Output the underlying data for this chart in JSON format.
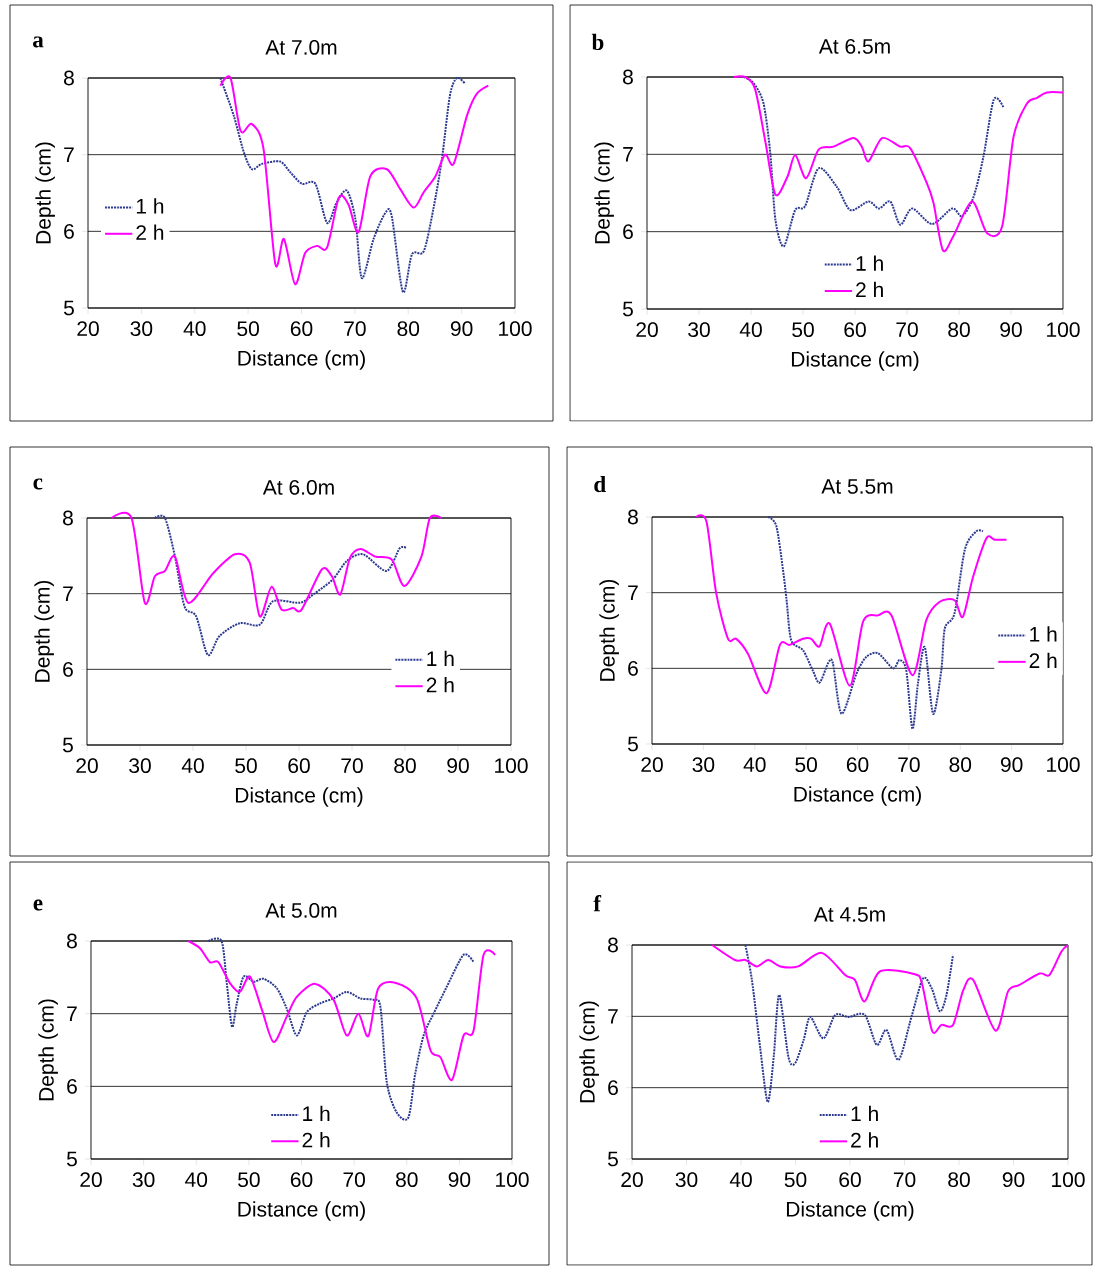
{
  "chart_data": [
    {
      "type": "line",
      "title": "At 7.0m",
      "annotations": [
        "a"
      ],
      "xlabel": "Distance (cm)",
      "ylabel": "Depth (cm)",
      "xlim": [
        20,
        100
      ],
      "ylim": [
        5,
        8
      ],
      "xticks": [
        20,
        30,
        40,
        50,
        60,
        70,
        80,
        90,
        100
      ],
      "yticks": [
        5,
        6,
        7,
        8
      ],
      "grid": "y",
      "legend": "left",
      "marker": "none",
      "series": [
        {
          "name": "1 h",
          "color": "#2b3990",
          "line_style": "dotted",
          "x": [
            44.8,
            47.3,
            49.2,
            50.7,
            52.6,
            56.0,
            57.9,
            60.1,
            62.6,
            64.8,
            66.6,
            68.5,
            70.1,
            71.3,
            73.5,
            75.7,
            76.9,
            79.0,
            80.7,
            82.9,
            84.7,
            86.3,
            87.8,
            89.1,
            90.6
          ],
          "values": [
            8.0,
            7.51,
            7.03,
            6.81,
            6.88,
            6.91,
            6.77,
            6.62,
            6.62,
            6.11,
            6.38,
            6.53,
            6.16,
            5.39,
            5.9,
            6.24,
            6.2,
            5.21,
            5.7,
            5.74,
            6.29,
            6.94,
            7.77,
            8.0,
            7.93
          ]
        },
        {
          "name": "2 h",
          "color": "#ff00ff",
          "line_style": "solid",
          "x": [
            44.8,
            46.7,
            48.6,
            50.7,
            52.9,
            55.1,
            56.7,
            58.8,
            60.7,
            62.9,
            64.8,
            67.0,
            68.8,
            70.7,
            72.9,
            76.0,
            78.5,
            81.0,
            82.9,
            85.1,
            86.9,
            88.5,
            91.0,
            92.8,
            95.0
          ],
          "values": [
            7.9,
            8.0,
            7.31,
            7.4,
            7.07,
            5.57,
            5.9,
            5.31,
            5.72,
            5.81,
            5.79,
            6.44,
            6.35,
            5.99,
            6.72,
            6.81,
            6.55,
            6.31,
            6.51,
            6.72,
            7.0,
            6.88,
            7.51,
            7.79,
            7.9
          ]
        }
      ]
    },
    {
      "type": "line",
      "title": "At 6.5m",
      "annotations": [
        "b"
      ],
      "xlabel": "Distance (cm)",
      "ylabel": "Depth (cm)",
      "xlim": [
        20,
        100
      ],
      "ylim": [
        5,
        8
      ],
      "xticks": [
        20,
        30,
        40,
        50,
        60,
        70,
        80,
        90,
        100
      ],
      "yticks": [
        5,
        6,
        7,
        8
      ],
      "grid": "y",
      "legend": "bottom",
      "marker": "none",
      "series": [
        {
          "name": "1 h",
          "color": "#2b3990",
          "line_style": "dotted",
          "x": [
            38.6,
            40.5,
            42.4,
            43.7,
            44.7,
            46.3,
            48.5,
            50.4,
            53.0,
            56.5,
            59.1,
            62.6,
            64.6,
            66.8,
            68.7,
            71.0,
            74.8,
            78.7,
            80.6,
            82.8,
            84.7,
            86.7,
            88.6
          ],
          "values": [
            8.0,
            7.92,
            7.66,
            7.02,
            6.15,
            5.81,
            6.28,
            6.33,
            6.82,
            6.58,
            6.28,
            6.39,
            6.3,
            6.39,
            6.09,
            6.3,
            6.1,
            6.3,
            6.2,
            6.45,
            6.97,
            7.71,
            7.6
          ]
        },
        {
          "name": "2 h",
          "color": "#ff00ff",
          "line_style": "solid",
          "x": [
            36.7,
            38.9,
            40.8,
            42.8,
            44.7,
            47.0,
            48.5,
            50.6,
            53.0,
            55.9,
            59.7,
            61.3,
            62.6,
            65.2,
            68.7,
            70.6,
            73.8,
            75.1,
            76.9,
            78.9,
            82.5,
            85.4,
            88.3,
            90.5,
            93.1,
            95.0,
            96.9,
            100
          ],
          "values": [
            8.0,
            8.0,
            7.84,
            7.15,
            6.48,
            6.71,
            6.99,
            6.69,
            7.06,
            7.1,
            7.21,
            7.1,
            6.91,
            7.21,
            7.1,
            7.08,
            6.63,
            6.37,
            5.76,
            5.94,
            6.39,
            5.98,
            6.07,
            7.23,
            7.66,
            7.73,
            7.8,
            7.8
          ]
        }
      ]
    },
    {
      "type": "line",
      "title": "At 6.0m",
      "annotations": [
        "c"
      ],
      "xlabel": "Distance (cm)",
      "ylabel": "Depth (cm)",
      "xlim": [
        20,
        100
      ],
      "ylim": [
        5,
        8
      ],
      "xticks": [
        20,
        30,
        40,
        50,
        60,
        70,
        80,
        90,
        100
      ],
      "yticks": [
        5,
        6,
        7,
        8
      ],
      "grid": "y",
      "legend": "bottom right",
      "marker": "none",
      "series": [
        {
          "name": "1 h",
          "color": "#2b3990",
          "line_style": "dotted",
          "x": [
            32.8,
            34.7,
            36.6,
            38.4,
            40.6,
            42.8,
            45.0,
            48.8,
            52.6,
            55.1,
            60.2,
            62.7,
            66.4,
            69.0,
            72.1,
            76.5,
            79.0,
            80.3
          ],
          "values": [
            8.0,
            8.0,
            7.49,
            6.83,
            6.7,
            6.19,
            6.44,
            6.61,
            6.59,
            6.9,
            6.88,
            6.99,
            7.19,
            7.43,
            7.52,
            7.3,
            7.6,
            7.6
          ]
        },
        {
          "name": "2 h",
          "color": "#ff00ff",
          "line_style": "solid",
          "x": [
            24.6,
            28.4,
            30.9,
            32.8,
            34.7,
            36.6,
            39.1,
            43.8,
            47.9,
            50.7,
            52.6,
            54.8,
            56.7,
            58.9,
            60.5,
            64.3,
            66.2,
            67.8,
            69.6,
            71.6,
            74.4,
            77.5,
            79.9,
            83.1,
            84.7,
            86.9
          ],
          "values": [
            8.0,
            8.0,
            6.88,
            7.23,
            7.3,
            7.49,
            6.88,
            7.27,
            7.52,
            7.41,
            6.7,
            7.09,
            6.79,
            6.81,
            6.79,
            7.32,
            7.23,
            6.99,
            7.47,
            7.59,
            7.49,
            7.45,
            7.1,
            7.49,
            8.0,
            8.0
          ]
        }
      ]
    },
    {
      "type": "line",
      "title": "At 5.5m",
      "annotations": [
        "d"
      ],
      "xlabel": "Distance (cm)",
      "ylabel": "Depth (cm)",
      "xlim": [
        20,
        100
      ],
      "ylim": [
        5,
        8
      ],
      "xticks": [
        20,
        30,
        40,
        50,
        60,
        70,
        80,
        90,
        100
      ],
      "yticks": [
        5,
        6,
        7,
        8
      ],
      "grid": "y",
      "legend": "right",
      "marker": "none",
      "series": [
        {
          "name": "1 h",
          "color": "#2b3990",
          "line_style": "dotted",
          "x": [
            42.6,
            44.2,
            45.5,
            46.2,
            47.1,
            49.4,
            51.3,
            52.6,
            54.3,
            55.2,
            56.9,
            59.8,
            61.7,
            64.0,
            66.9,
            68.2,
            69.5,
            70.7,
            71.8,
            73.1,
            74.7,
            76.3,
            77.0,
            78.9,
            80.9,
            83.1,
            84.4
          ],
          "values": [
            8.0,
            7.88,
            7.3,
            6.9,
            6.37,
            6.24,
            5.97,
            5.81,
            6.07,
            6.07,
            5.4,
            5.93,
            6.15,
            6.2,
            6.0,
            6.11,
            5.97,
            5.2,
            5.82,
            6.28,
            5.4,
            5.97,
            6.53,
            6.73,
            7.57,
            7.81,
            7.81
          ]
        },
        {
          "name": "2 h",
          "color": "#ff00ff",
          "line_style": "solid",
          "x": [
            28.6,
            30.6,
            32.5,
            34.8,
            36.4,
            38.7,
            42.3,
            44.9,
            46.8,
            49.4,
            51.0,
            52.6,
            54.6,
            58.5,
            61.1,
            64.0,
            66.6,
            70.7,
            73.4,
            76.0,
            78.9,
            80.5,
            82.5,
            85.1,
            86.7,
            89.0
          ],
          "values": [
            8.0,
            7.94,
            6.99,
            6.39,
            6.39,
            6.19,
            5.67,
            6.31,
            6.31,
            6.39,
            6.39,
            6.29,
            6.59,
            5.77,
            6.62,
            6.7,
            6.7,
            5.91,
            6.64,
            6.88,
            6.9,
            6.68,
            7.21,
            7.72,
            7.7,
            7.7
          ]
        }
      ]
    },
    {
      "type": "line",
      "title": "At 5.0m",
      "annotations": [
        "e"
      ],
      "xlabel": "Distance (cm)",
      "ylabel": "Depth (cm)",
      "xlim": [
        20,
        100
      ],
      "ylim": [
        5,
        8
      ],
      "xticks": [
        20,
        30,
        40,
        50,
        60,
        70,
        80,
        90,
        100
      ],
      "yticks": [
        5,
        6,
        7,
        8
      ],
      "grid": "y",
      "legend": "bottom",
      "marker": "none",
      "series": [
        {
          "name": "1 h",
          "color": "#2b3990",
          "line_style": "dotted",
          "x": [
            42.3,
            44.8,
            45.8,
            46.8,
            47.7,
            49.0,
            50.9,
            52.8,
            55.3,
            57.2,
            59.1,
            61.0,
            63.5,
            66.1,
            68.6,
            71.2,
            73.7,
            75.0,
            76.2,
            78.1,
            80.3,
            81.6,
            83.2,
            85.1,
            87.6,
            90.8,
            92.7
          ],
          "values": [
            8.0,
            8.0,
            7.42,
            6.82,
            7.14,
            7.51,
            7.44,
            7.48,
            7.35,
            7.07,
            6.7,
            7.02,
            7.14,
            7.21,
            7.3,
            7.21,
            7.19,
            7.09,
            6.06,
            5.64,
            5.57,
            6.17,
            6.7,
            7.0,
            7.37,
            7.81,
            7.71
          ]
        },
        {
          "name": "2 h",
          "color": "#ff00ff",
          "line_style": "solid",
          "x": [
            38.5,
            40.7,
            42.6,
            44.2,
            46.4,
            48.3,
            50.2,
            52.5,
            54.7,
            57.2,
            59.1,
            62.6,
            66.1,
            68.6,
            70.8,
            72.7,
            74.6,
            78.1,
            81.9,
            84.5,
            86.4,
            88.6,
            90.8,
            92.7,
            94.6,
            96.8
          ],
          "values": [
            8.0,
            7.9,
            7.71,
            7.71,
            7.42,
            7.3,
            7.51,
            7.05,
            6.61,
            6.96,
            7.23,
            7.41,
            7.19,
            6.7,
            7.0,
            6.69,
            7.35,
            7.42,
            7.21,
            6.5,
            6.4,
            6.09,
            6.7,
            6.77,
            7.81,
            7.81
          ]
        }
      ]
    },
    {
      "type": "line",
      "title": "At 4.5m",
      "annotations": [
        "f"
      ],
      "xlabel": "Distance (cm)",
      "ylabel": "Depth (cm)",
      "xlim": [
        20,
        100
      ],
      "ylim": [
        5,
        8
      ],
      "xticks": [
        20,
        30,
        40,
        50,
        60,
        70,
        80,
        90,
        100
      ],
      "yticks": [
        5,
        6,
        7,
        8
      ],
      "grid": "y",
      "legend": "bottom",
      "marker": "none",
      "series": [
        {
          "name": "1 h",
          "color": "#2b3990",
          "line_style": "dotted",
          "x": [
            40.8,
            42.0,
            43.5,
            44.9,
            46.0,
            47.0,
            48.7,
            49.9,
            51.5,
            52.7,
            55.1,
            57.3,
            59.7,
            62.7,
            64.9,
            66.7,
            68.9,
            71.3,
            73.4,
            75.0,
            76.5,
            77.7,
            78.9
          ],
          "values": [
            8.0,
            7.51,
            6.57,
            5.8,
            6.43,
            7.3,
            6.43,
            6.34,
            6.67,
            6.99,
            6.69,
            7.02,
            6.99,
            7.02,
            6.6,
            6.81,
            6.39,
            7.0,
            7.53,
            7.39,
            7.07,
            7.3,
            7.86
          ]
        },
        {
          "name": "2 h",
          "color": "#ff00ff",
          "line_style": "solid",
          "x": [
            34.7,
            38.9,
            40.8,
            42.9,
            45.0,
            47.2,
            50.5,
            54.8,
            59.1,
            60.9,
            62.7,
            65.5,
            71.9,
            73.2,
            75.1,
            76.8,
            78.9,
            80.8,
            82.6,
            86.7,
            89.0,
            91.1,
            94.8,
            96.6,
            98.8,
            100
          ],
          "values": [
            8.0,
            7.79,
            7.79,
            7.7,
            7.79,
            7.7,
            7.7,
            7.89,
            7.58,
            7.51,
            7.21,
            7.63,
            7.59,
            7.46,
            6.79,
            6.88,
            6.88,
            7.37,
            7.51,
            6.8,
            7.35,
            7.44,
            7.6,
            7.58,
            7.91,
            8.0
          ]
        }
      ]
    }
  ]
}
